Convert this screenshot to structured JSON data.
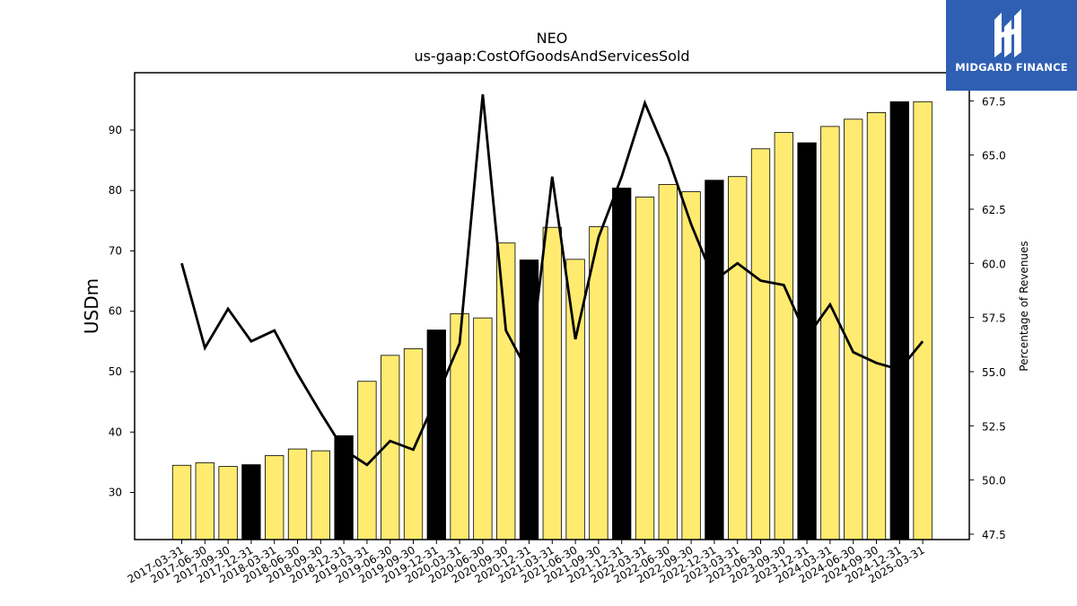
{
  "chart_data": {
    "type": "bar",
    "title": "NEO",
    "subtitle": "us-gaap:CostOfGoodsAndServicesSold",
    "ylabel": "USDm",
    "y2label": "Percentage of Revenues",
    "ylim": [
      22.2,
      99.5
    ],
    "y2lim": [
      47.25,
      68.8
    ],
    "yticks": [
      30,
      40,
      50,
      60,
      70,
      80,
      90
    ],
    "y2ticks": [
      47.5,
      50.0,
      52.5,
      55.0,
      57.5,
      60.0,
      62.5,
      65.0,
      67.5
    ],
    "categories": [
      "2017-03-31",
      "2017-06-30",
      "2017-09-30",
      "2017-12-31",
      "2018-03-31",
      "2018-06-30",
      "2018-09-30",
      "2018-12-31",
      "2019-03-31",
      "2019-06-30",
      "2019-09-30",
      "2019-12-31",
      "2020-03-31",
      "2020-06-30",
      "2020-09-30",
      "2020-12-31",
      "2021-03-31",
      "2021-06-30",
      "2021-09-30",
      "2021-12-31",
      "2022-03-31",
      "2022-06-30",
      "2022-09-30",
      "2022-12-31",
      "2023-03-31",
      "2023-06-30",
      "2023-09-30",
      "2023-12-31",
      "2024-03-31",
      "2024-06-30",
      "2024-09-30",
      "2024-12-31",
      "2025-03-31"
    ],
    "series": [
      {
        "kind": "bar",
        "values": [
          34.5,
          34.9,
          34.3,
          34.6,
          36.1,
          37.2,
          36.9,
          39.4,
          48.4,
          52.7,
          53.8,
          56.9,
          59.6,
          58.9,
          71.3,
          68.5,
          73.9,
          68.6,
          74.0,
          80.4,
          78.9,
          81.0,
          79.8,
          81.7,
          82.3,
          86.9,
          89.6,
          87.9,
          90.6,
          91.8,
          92.9,
          94.7,
          94.7
        ],
        "colors": [
          "#ffeb70",
          "#ffeb70",
          "#ffeb70",
          "#000000",
          "#ffeb70",
          "#ffeb70",
          "#ffeb70",
          "#000000",
          "#ffeb70",
          "#ffeb70",
          "#ffeb70",
          "#000000",
          "#ffeb70",
          "#ffeb70",
          "#ffeb70",
          "#000000",
          "#ffeb70",
          "#ffeb70",
          "#ffeb70",
          "#000000",
          "#ffeb70",
          "#ffeb70",
          "#ffeb70",
          "#000000",
          "#ffeb70",
          "#ffeb70",
          "#ffeb70",
          "#000000",
          "#ffeb70",
          "#ffeb70",
          "#ffeb70",
          "#000000",
          "#ffeb70"
        ]
      },
      {
        "kind": "line",
        "axis": "right",
        "color": "#000000",
        "values": [
          60.0,
          56.1,
          57.9,
          56.4,
          56.9,
          54.9,
          53.1,
          51.4,
          50.7,
          51.8,
          51.4,
          53.8,
          56.3,
          67.8,
          56.9,
          54.9,
          64.0,
          56.5,
          61.2,
          64.0,
          67.4,
          64.9,
          61.8,
          59.2,
          60.0,
          59.2,
          59.0,
          56.6,
          58.1,
          55.9,
          55.4,
          55.1,
          56.4
        ]
      }
    ],
    "grid": false,
    "legend": "none",
    "colors": {
      "bar_fill": "#ffeb70",
      "bar_highlight": "#000000",
      "bar_edge": "#000000",
      "line": "#000000"
    }
  },
  "brand": {
    "name": "MIDGARD FINANCE",
    "icon": "midgard-logo-icon",
    "bg": "#2f5fb3"
  }
}
